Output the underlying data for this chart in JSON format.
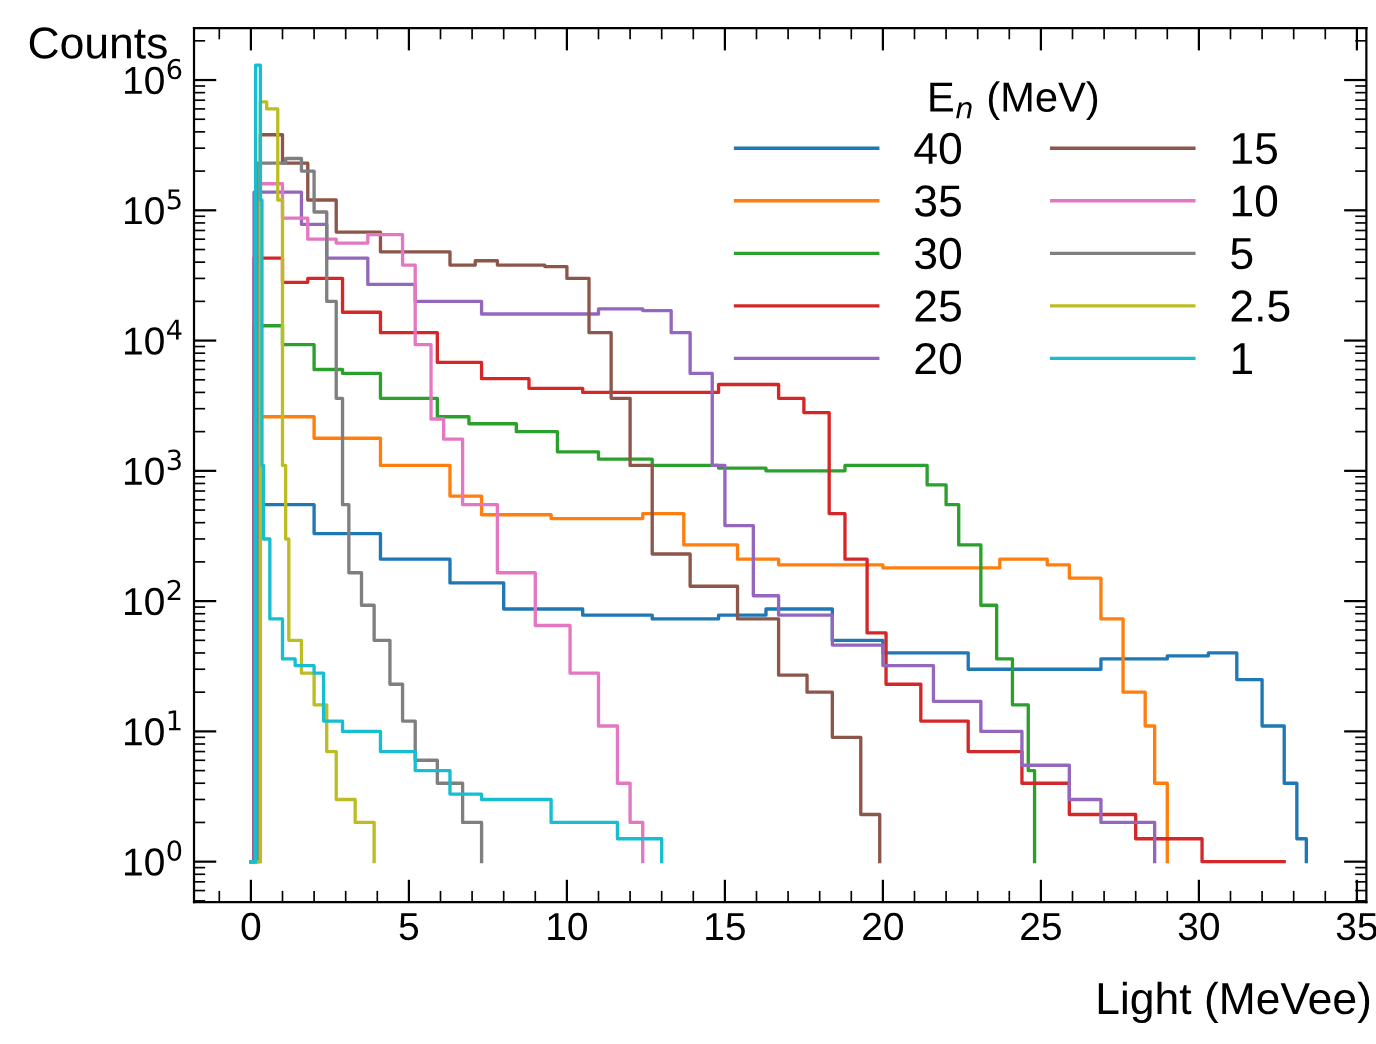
{
  "chart_data": {
    "type": "step",
    "xlabel": "Light (MeVee)",
    "ylabel": "Counts",
    "legend_title": "E$_{n}$ (MeV)",
    "log": "y",
    "grid": false,
    "legend": "top right",
    "xlim": [
      -1.8,
      35.3
    ],
    "xticks": [
      0,
      5,
      10,
      15,
      20,
      25,
      30,
      35
    ],
    "ylim": [
      0.49,
      2500000
    ],
    "yticks": [
      {
        "value": 1,
        "label": "10$^{0}$"
      },
      {
        "value": 10,
        "label": "10$^{1}$"
      },
      {
        "value": 100,
        "label": "10$^{2}$"
      },
      {
        "value": 1000,
        "label": "10$^{3}$"
      },
      {
        "value": 10000,
        "label": "10$^{4}$"
      },
      {
        "value": 100000,
        "label": "10$^{5}$"
      },
      {
        "value": 1000000,
        "label": "10$^{6}$"
      }
    ],
    "series": [
      {
        "name": "40",
        "color": "#1f77b4",
        "x": [
          0,
          0.2,
          2,
          4.1,
          6.3,
          8,
          10.5,
          12.7,
          14.8,
          16.3,
          18.4,
          20,
          22.7,
          25.2,
          26.9,
          29,
          30.3,
          31.2,
          32,
          32.7,
          33.1,
          33.4
        ],
        "values": [
          1,
          550,
          330,
          210,
          138,
          87,
          78,
          73,
          78,
          87,
          50,
          40,
          30,
          30,
          36,
          38,
          40,
          25,
          11,
          4,
          1.5,
          1
        ]
      },
      {
        "name": "35",
        "color": "#ff7f0e",
        "x": [
          0,
          0.1,
          2,
          4.1,
          6.3,
          7.3,
          9.5,
          11.6,
          12.4,
          13.7,
          15.4,
          16.7,
          20,
          23.7,
          25.2,
          25.9,
          26.9,
          27.6,
          28.3,
          28.6,
          29.0
        ],
        "values": [
          1,
          2600,
          1780,
          1100,
          640,
          460,
          430,
          430,
          470,
          270,
          210,
          190,
          180,
          210,
          190,
          150,
          73,
          20,
          11,
          4,
          1
        ]
      },
      {
        "name": "30",
        "color": "#2ca02c",
        "x": [
          0,
          0.1,
          1,
          2,
          2.9,
          4.1,
          5.9,
          6.9,
          8.4,
          9.7,
          11,
          12.7,
          14.8,
          16.3,
          18.8,
          20.7,
          21.4,
          22,
          22.4,
          23.1,
          23.6,
          24.1,
          24.6,
          24.8
        ],
        "values": [
          1,
          13000,
          9300,
          6000,
          5600,
          3600,
          2600,
          2300,
          2000,
          1400,
          1230,
          1100,
          1050,
          1000,
          1100,
          1100,
          780,
          550,
          270,
          93,
          36,
          16,
          5,
          1
        ]
      },
      {
        "name": "25",
        "color": "#d62728",
        "x": [
          0,
          0.1,
          1,
          1.8,
          2.9,
          4.1,
          5.9,
          7.3,
          8.8,
          10.5,
          12.7,
          14.8,
          15.9,
          16.7,
          17.5,
          18.3,
          18.8,
          19.5,
          20.1,
          21.2,
          22.7,
          24.4,
          25.9,
          28,
          30.1,
          32.7
        ],
        "values": [
          1,
          43000,
          28000,
          30000,
          16500,
          11500,
          6800,
          5100,
          4300,
          4000,
          4000,
          4600,
          4600,
          3600,
          2800,
          470,
          210,
          57,
          23,
          12,
          7,
          4,
          2.3,
          1.5,
          1,
          1
        ]
      },
      {
        "name": "20",
        "color": "#9467bd",
        "x": [
          0,
          0.1,
          0.9,
          1.6,
          2.4,
          3.7,
          5.2,
          7.3,
          9.5,
          11,
          12.4,
          13.3,
          13.9,
          14.6,
          15,
          15.9,
          16.7,
          18.4,
          20,
          21.6,
          23.1,
          24.4,
          25.9,
          26.9,
          28.6
        ],
        "values": [
          1,
          138000,
          138000,
          78000,
          43000,
          27000,
          20000,
          16000,
          16000,
          17500,
          17000,
          11500,
          5600,
          1100,
          380,
          110,
          78,
          46,
          32,
          17,
          10,
          5.5,
          3,
          2,
          1
        ]
      },
      {
        "name": "15",
        "color": "#8c564b",
        "x": [
          0,
          0.3,
          1,
          1.8,
          2.7,
          4.1,
          6.3,
          7.1,
          7.8,
          9.3,
          10,
          10.7,
          11.4,
          12,
          12.7,
          13.9,
          15.4,
          16.7,
          17.6,
          18.4,
          19.3,
          19.9
        ],
        "values": [
          1,
          380000,
          230000,
          120000,
          68000,
          48000,
          38000,
          41000,
          38000,
          37000,
          30000,
          11500,
          3600,
          1100,
          230,
          130,
          73,
          27,
          20,
          9,
          2.3,
          1
        ]
      },
      {
        "name": "10",
        "color": "#e377c2",
        "x": [
          0,
          0.2,
          1,
          1.8,
          2.7,
          3.7,
          4.3,
          4.8,
          5.2,
          5.7,
          6.1,
          6.7,
          7.8,
          9,
          10.1,
          11,
          11.6,
          12,
          12.4
        ],
        "values": [
          1,
          160000,
          87000,
          60000,
          56000,
          65000,
          65000,
          38000,
          9300,
          2500,
          1750,
          550,
          165,
          65,
          28,
          11,
          4,
          2,
          1
        ]
      },
      {
        "name": "5",
        "color": "#7f7f7f",
        "x": [
          0,
          0.2,
          1.1,
          1.6,
          2,
          2.4,
          2.7,
          2.9,
          3.1,
          3.5,
          3.9,
          4.4,
          4.8,
          5.2,
          5.9,
          6.7,
          7.3
        ],
        "values": [
          1,
          230000,
          250000,
          200000,
          97000,
          20000,
          3600,
          550,
          165,
          93,
          50,
          23,
          12,
          6,
          4,
          2,
          1
        ]
      },
      {
        "name": "2.5",
        "color": "#bcbd22",
        "x": [
          0,
          0.3,
          0.5,
          0.85,
          1,
          1.1,
          1.2,
          1.6,
          2,
          2.4,
          2.7,
          3.3,
          3.9
        ],
        "values": [
          1,
          680000,
          600000,
          120000,
          1100,
          300,
          50,
          28,
          16,
          7,
          3,
          2,
          1
        ]
      },
      {
        "name": "1",
        "color": "#17becf",
        "x": [
          0,
          0.15,
          0.3,
          0.35,
          0.4,
          0.6,
          1,
          1.4,
          2,
          2.3,
          2.9,
          3.5,
          4.1,
          5.2,
          6.3,
          7.3,
          9.5,
          11.6,
          13
        ],
        "values": [
          1,
          1300000,
          120000,
          1100,
          300,
          73,
          36,
          32,
          28,
          12,
          10,
          10,
          7,
          5,
          3.3,
          3,
          2,
          1.5,
          1
        ]
      }
    ]
  }
}
